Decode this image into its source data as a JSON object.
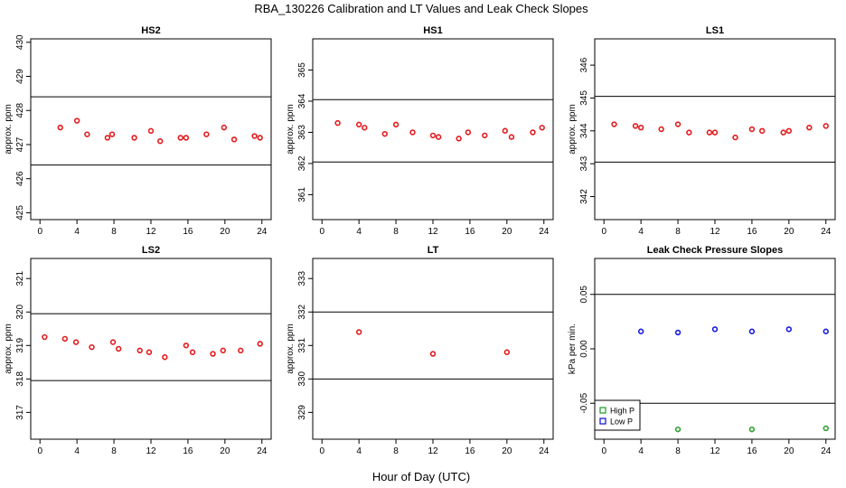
{
  "figure": {
    "title": "RBA_130226  Calibration and LT Values and Leak Check Slopes",
    "xlabel": "Hour of Day (UTC)"
  },
  "colors": {
    "red": "#e41a1c",
    "green": "#2ca02c",
    "blue": "#1a1adf"
  },
  "chart_data": [
    {
      "type": "scatter",
      "title": "HS2",
      "ylabel": "approx. ppm",
      "xlim": [
        -1,
        25
      ],
      "ylim": [
        424.8,
        430.1
      ],
      "xticks": [
        "0",
        "4",
        "8",
        "12",
        "16",
        "20",
        "24"
      ],
      "yticks": [
        "425",
        "426",
        "427",
        "428",
        "429",
        "430"
      ],
      "ref_lines": [
        428.4,
        426.4
      ],
      "series": [
        {
          "color": "#e41a1c",
          "x": [
            2.2,
            4.0,
            5.1,
            7.3,
            7.8,
            10.2,
            12.0,
            13.0,
            15.2,
            15.8,
            18.0,
            19.9,
            21.0,
            23.2,
            23.8
          ],
          "y": [
            427.5,
            427.7,
            427.3,
            427.2,
            427.3,
            427.2,
            427.4,
            427.1,
            427.2,
            427.2,
            427.3,
            427.5,
            427.15,
            427.25,
            427.2
          ]
        }
      ]
    },
    {
      "type": "scatter",
      "title": "HS1",
      "ylabel": "approx. ppm",
      "xlim": [
        -1,
        25
      ],
      "ylim": [
        360.2,
        366.0
      ],
      "xticks": [
        "0",
        "4",
        "8",
        "12",
        "16",
        "20",
        "24"
      ],
      "yticks": [
        "361",
        "362",
        "363",
        "364",
        "365"
      ],
      "ref_lines": [
        364.05,
        362.05
      ],
      "series": [
        {
          "color": "#e41a1c",
          "x": [
            1.7,
            4.0,
            4.6,
            6.8,
            8.0,
            9.8,
            12.0,
            12.6,
            14.8,
            15.8,
            17.6,
            19.8,
            20.5,
            22.8,
            23.8
          ],
          "y": [
            363.3,
            363.25,
            363.15,
            362.95,
            363.25,
            363.0,
            362.9,
            362.85,
            362.8,
            363.0,
            362.9,
            363.05,
            362.85,
            363.0,
            363.15
          ]
        }
      ]
    },
    {
      "type": "scatter",
      "title": "LS1",
      "ylabel": "approx. ppm",
      "xlim": [
        -1,
        25
      ],
      "ylim": [
        341.3,
        346.8
      ],
      "xticks": [
        "0",
        "4",
        "8",
        "12",
        "16",
        "20",
        "24"
      ],
      "yticks": [
        "342",
        "343",
        "344",
        "345",
        "346"
      ],
      "ref_lines": [
        345.05,
        343.05
      ],
      "series": [
        {
          "color": "#e41a1c",
          "x": [
            1.1,
            3.4,
            4.0,
            6.2,
            8.0,
            9.2,
            11.4,
            12.0,
            14.2,
            16.0,
            17.1,
            19.4,
            20.0,
            22.2,
            24.0
          ],
          "y": [
            344.2,
            344.15,
            344.1,
            344.05,
            344.2,
            343.95,
            343.95,
            343.95,
            343.8,
            344.05,
            344.0,
            343.95,
            344.0,
            344.1,
            344.15
          ]
        }
      ]
    },
    {
      "type": "scatter",
      "title": "LS2",
      "ylabel": "approx. ppm",
      "xlim": [
        -1,
        25
      ],
      "ylim": [
        316.2,
        321.6
      ],
      "xticks": [
        "0",
        "4",
        "8",
        "12",
        "16",
        "20",
        "24"
      ],
      "yticks": [
        "317",
        "318",
        "319",
        "320",
        "321"
      ],
      "ref_lines": [
        319.95,
        317.95
      ],
      "series": [
        {
          "color": "#e41a1c",
          "x": [
            0.5,
            2.7,
            3.9,
            5.6,
            7.9,
            8.5,
            10.8,
            11.8,
            13.5,
            15.8,
            16.5,
            18.7,
            19.8,
            21.7,
            23.8
          ],
          "y": [
            319.25,
            319.2,
            319.1,
            318.95,
            319.1,
            318.9,
            318.85,
            318.8,
            318.65,
            319.0,
            318.8,
            318.75,
            318.85,
            318.85,
            319.05
          ]
        }
      ]
    },
    {
      "type": "scatter",
      "title": "LT",
      "ylabel": "approx. ppm",
      "xlim": [
        -1,
        25
      ],
      "ylim": [
        328.2,
        333.6
      ],
      "xticks": [
        "0",
        "4",
        "8",
        "12",
        "16",
        "20",
        "24"
      ],
      "yticks": [
        "329",
        "330",
        "331",
        "332",
        "333"
      ],
      "ref_lines": [
        332.0,
        330.0
      ],
      "series": [
        {
          "color": "#e41a1c",
          "x": [
            4.0,
            12.0,
            20.0
          ],
          "y": [
            331.4,
            330.75,
            330.8
          ]
        }
      ]
    },
    {
      "type": "scatter",
      "title": "Leak Check Pressure Slopes",
      "ylabel": "kPa per min.",
      "xlim": [
        -1,
        25
      ],
      "ylim": [
        -0.083,
        0.083
      ],
      "xticks": [
        "0",
        "4",
        "8",
        "12",
        "16",
        "20",
        "24"
      ],
      "yticks": [
        {
          "label": "-0.05",
          "value": -0.05
        },
        {
          "label": "0.00",
          "value": 0.0
        },
        {
          "label": "0.05",
          "value": 0.05
        }
      ],
      "ref_lines": [
        0.05,
        -0.05
      ],
      "legend": {
        "position": "bottom-left",
        "entries": [
          "High P",
          "Low P"
        ]
      },
      "series": [
        {
          "name": "High P",
          "color": "#2ca02c",
          "x": [
            8.0,
            16.0,
            24.0
          ],
          "y": [
            -0.074,
            -0.074,
            -0.073
          ]
        },
        {
          "name": "Low P",
          "color": "#1a1adf",
          "x": [
            4.0,
            8.0,
            12.0,
            16.0,
            20.0,
            24.0
          ],
          "y": [
            0.016,
            0.015,
            0.018,
            0.016,
            0.018,
            0.016
          ]
        }
      ]
    }
  ]
}
